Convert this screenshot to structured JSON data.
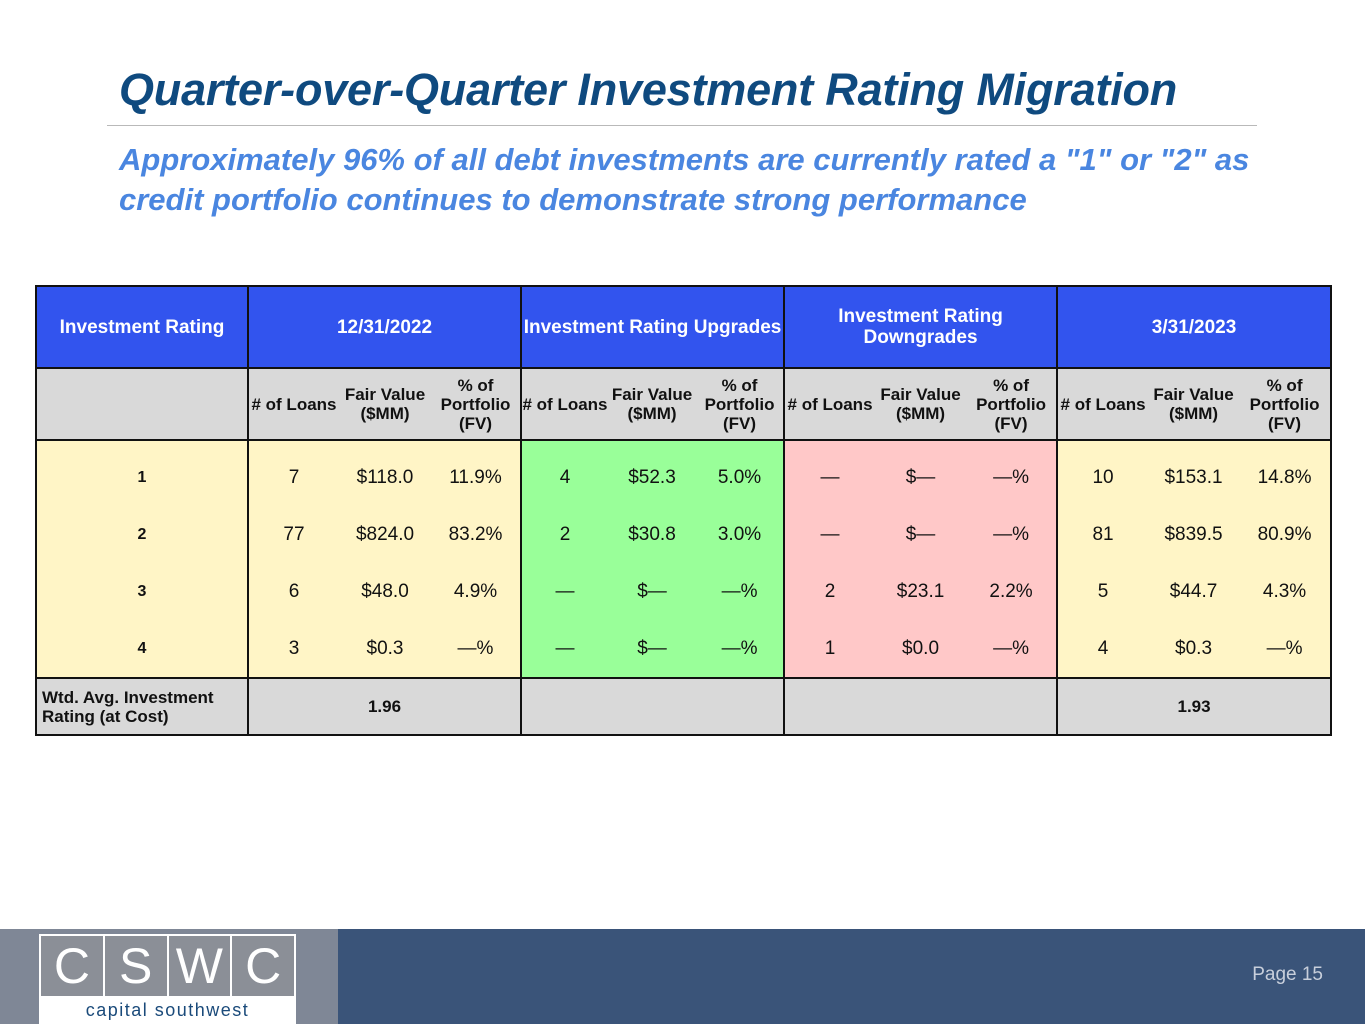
{
  "title": "Quarter-over-Quarter Investment Rating Migration",
  "subtitle": "Approximately 96% of all debt investments are currently rated a \"1\" or \"2\" as credit portfolio continues to demonstrate strong performance",
  "table": {
    "group_headers": [
      "Investment Rating",
      "12/31/2022",
      "Investment Rating Upgrades",
      "Investment Rating Downgrades",
      "3/31/2023"
    ],
    "sub_headers": [
      "# of Loans",
      "Fair Value ($MM)",
      "% of Portfolio (FV)"
    ],
    "rows": [
      {
        "rating": "1",
        "q4": [
          "7",
          "$118.0",
          "11.9%"
        ],
        "up": [
          "4",
          "$52.3",
          "5.0%"
        ],
        "down": [
          "—",
          "$—",
          "—%"
        ],
        "q1": [
          "10",
          "$153.1",
          "14.8%"
        ]
      },
      {
        "rating": "2",
        "q4": [
          "77",
          "$824.0",
          "83.2%"
        ],
        "up": [
          "2",
          "$30.8",
          "3.0%"
        ],
        "down": [
          "—",
          "$—",
          "—%"
        ],
        "q1": [
          "81",
          "$839.5",
          "80.9%"
        ]
      },
      {
        "rating": "3",
        "q4": [
          "6",
          "$48.0",
          "4.9%"
        ],
        "up": [
          "—",
          "$—",
          "—%"
        ],
        "down": [
          "2",
          "$23.1",
          "2.2%"
        ],
        "q1": [
          "5",
          "$44.7",
          "4.3%"
        ]
      },
      {
        "rating": "4",
        "q4": [
          "3",
          "$0.3",
          "—%"
        ],
        "up": [
          "—",
          "$—",
          "—%"
        ],
        "down": [
          "1",
          "$0.0",
          "—%"
        ],
        "q1": [
          "4",
          "$0.3",
          "—%"
        ]
      }
    ],
    "footer": {
      "label": "Wtd. Avg. Investment Rating (at Cost)",
      "q4": "1.96",
      "q1": "1.93"
    }
  },
  "footer": {
    "logo_letters": [
      "C",
      "S",
      "W",
      "C"
    ],
    "logo_name": "capital southwest",
    "page": "Page 15"
  },
  "colors": {
    "header": "#3254ee",
    "upgrades": "#99ff99",
    "downgrades": "#ffc8c8",
    "ratings": "#fff5c6"
  }
}
